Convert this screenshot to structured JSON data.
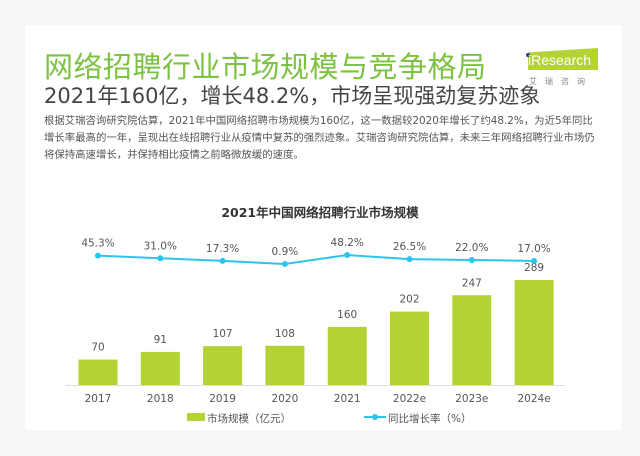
{
  "header": {
    "title": "网络招聘行业市场规模与竞争格局",
    "subtitle": "2021年160亿，增长48.2%，市场呈现强劲复苏迹象",
    "body": "根据艾瑞咨询研究院估算，2021年中国网络招聘市场规模为160亿，这一数据较2020年增长了约48.2%，为近5年同比增长率最高的一年，呈现出在线招聘行业从疫情中复苏的强烈迹象。艾瑞咨询研究院估算，未来三年网络招聘行业市场仍将保持高速增长，并保持相比疫情之前略微放缓的速度。"
  },
  "logo": {
    "brand": "iResearch",
    "cn": "艾瑞咨询",
    "color": "#b5d334"
  },
  "chart_data": {
    "type": "bar+line",
    "title": "2021年中国网络招聘行业市场规模",
    "categories": [
      "2017",
      "2018",
      "2019",
      "2020",
      "2021",
      "2022e",
      "2023e",
      "2024e"
    ],
    "series": [
      {
        "name": "市场规模（亿元）",
        "type": "bar",
        "color": "#b3d234",
        "values": [
          70,
          91,
          107,
          108,
          160,
          202,
          247,
          289
        ],
        "labels": [
          "70",
          "91",
          "107",
          "108",
          "160",
          "202",
          "247",
          "289"
        ]
      },
      {
        "name": "同比增长率（%）",
        "type": "line",
        "color": "#2bc4ee",
        "values": [
          45.3,
          31.0,
          17.3,
          0.9,
          48.2,
          26.5,
          22.0,
          17.0
        ],
        "labels": [
          "45.3%",
          "31.0%",
          "17.3%",
          "0.9%",
          "48.2%",
          "26.5%",
          "22.0%",
          "17.0%"
        ]
      }
    ],
    "legend": "bottom",
    "grid": false
  }
}
